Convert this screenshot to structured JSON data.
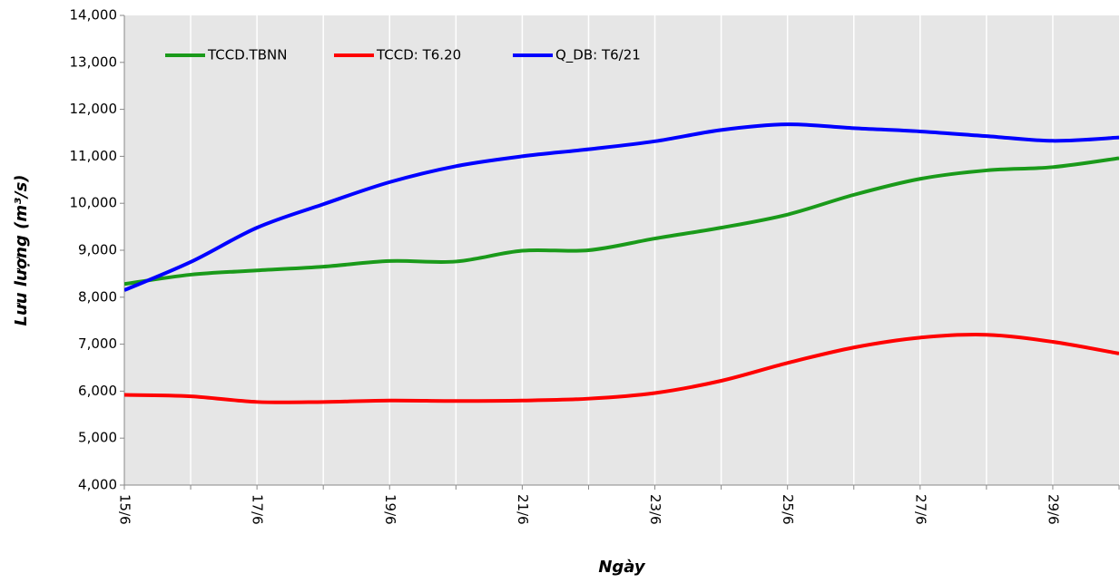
{
  "chart_data": {
    "type": "line",
    "x_label": "Ngày",
    "y_label": "Lưu lượng (m³/s)",
    "categories": [
      "15/6",
      null,
      "17/6",
      null,
      "19/6",
      null,
      "21/6",
      null,
      "23/6",
      null,
      "25/6",
      null,
      "27/6",
      null,
      "29/6",
      null
    ],
    "series": [
      {
        "name": "TCCD.TBNN",
        "color": "#1a9a1a",
        "values": [
          8280,
          8480,
          8570,
          8650,
          8770,
          8760,
          8990,
          9000,
          9250,
          9480,
          9760,
          10180,
          10520,
          10700,
          10770,
          10960
        ]
      },
      {
        "name": "TCCD: T6.20",
        "color": "#ff0000",
        "values": [
          5920,
          5890,
          5770,
          5770,
          5800,
          5790,
          5800,
          5840,
          5960,
          6220,
          6600,
          6930,
          7140,
          7200,
          7050,
          6800
        ]
      },
      {
        "name": "Q_DB: T6/21",
        "color": "#0000ff",
        "values": [
          8150,
          8750,
          9480,
          9980,
          10450,
          10790,
          11000,
          11150,
          11320,
          11560,
          11680,
          11600,
          11530,
          11430,
          11330,
          11400
        ]
      }
    ],
    "ylim": [
      4000,
      14000
    ],
    "yticks": [
      {
        "value": 4000,
        "label": "4,000"
      },
      {
        "value": 5000,
        "label": "5,000"
      },
      {
        "value": 6000,
        "label": "6,000"
      },
      {
        "value": 7000,
        "label": "7,000"
      },
      {
        "value": 8000,
        "label": "8,000"
      },
      {
        "value": 9000,
        "label": "9,000"
      },
      {
        "value": 10000,
        "label": "10,000"
      },
      {
        "value": 11000,
        "label": "11,000"
      },
      {
        "value": 12000,
        "label": "12,000"
      },
      {
        "value": 13000,
        "label": "13,000"
      },
      {
        "value": 14000,
        "label": "14,000"
      }
    ],
    "xgrid": true,
    "legend": "upper left"
  }
}
